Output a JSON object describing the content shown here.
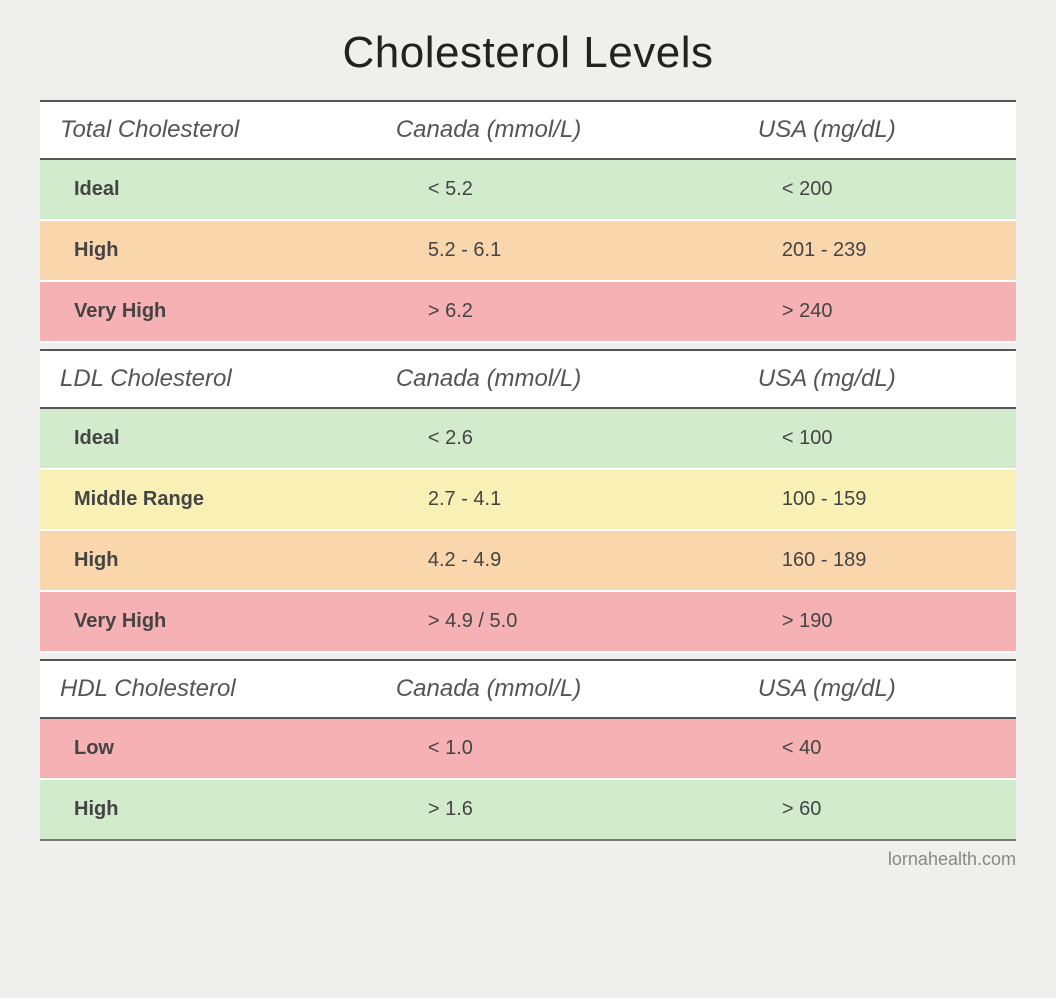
{
  "title": "Cholesterol Levels",
  "footer": "lornahealth.com",
  "colors": {
    "green": "#d2ebcc",
    "orange": "#fad6ad",
    "pink": "#f5b1b3",
    "yellow": "#f9f0b5",
    "headerBg": "#ffffff",
    "border": "#555555"
  },
  "sections": [
    {
      "id": "total",
      "headers": [
        "Total Cholesterol",
        "Canada (mmol/L)",
        "USA (mg/dL)"
      ],
      "rows": [
        {
          "label": "Ideal",
          "canada": "< 5.2",
          "usa": "< 200",
          "color": "green"
        },
        {
          "label": "High",
          "canada": "5.2 - 6.1",
          "usa": "201 - 239",
          "color": "orange"
        },
        {
          "label": "Very High",
          "canada": "> 6.2",
          "usa": "> 240",
          "color": "pink"
        }
      ]
    },
    {
      "id": "ldl",
      "headers": [
        "LDL Cholesterol",
        "Canada (mmol/L)",
        "USA (mg/dL)"
      ],
      "rows": [
        {
          "label": "Ideal",
          "canada": "< 2.6",
          "usa": "< 100",
          "color": "green"
        },
        {
          "label": "Middle Range",
          "canada": "2.7 - 4.1",
          "usa": "100 - 159",
          "color": "yellow"
        },
        {
          "label": "High",
          "canada": "4.2 - 4.9",
          "usa": "160 - 189",
          "color": "orange"
        },
        {
          "label": "Very High",
          "canada": "> 4.9 / 5.0",
          "usa": "> 190",
          "color": "pink"
        }
      ]
    },
    {
      "id": "hdl",
      "headers": [
        "HDL Cholesterol",
        "Canada (mmol/L)",
        "USA (mg/dL)"
      ],
      "rows": [
        {
          "label": "Low",
          "canada": "< 1.0",
          "usa": "< 40",
          "color": "pink"
        },
        {
          "label": "High",
          "canada": "> 1.6",
          "usa": "> 60",
          "color": "green"
        }
      ]
    }
  ]
}
